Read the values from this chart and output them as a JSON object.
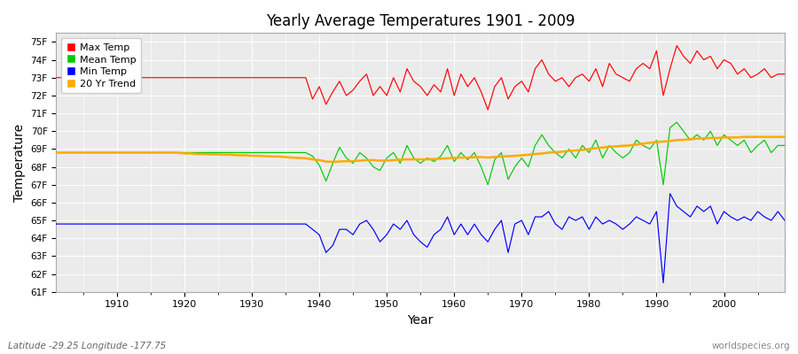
{
  "title": "Yearly Average Temperatures 1901 - 2009",
  "xlabel": "Year",
  "ylabel": "Temperature",
  "lat_lon_text": "Latitude -29.25 Longitude -177.75",
  "watermark": "worldspecies.org",
  "ylim": [
    61,
    75.5
  ],
  "xlim": [
    1901,
    2009
  ],
  "yticks": [
    61,
    62,
    63,
    64,
    65,
    66,
    67,
    68,
    69,
    70,
    71,
    72,
    73,
    74,
    75
  ],
  "ytick_labels": [
    "61F",
    "62F",
    "63F",
    "64F",
    "65F",
    "66F",
    "67F",
    "68F",
    "69F",
    "70F",
    "71F",
    "72F",
    "73F",
    "74F",
    "75F"
  ],
  "xticks": [
    1910,
    1920,
    1930,
    1940,
    1950,
    1960,
    1970,
    1980,
    1990,
    2000
  ],
  "fig_background": "#ffffff",
  "plot_background": "#ebebeb",
  "grid_color": "#ffffff",
  "legend_entries": [
    "Max Temp",
    "Mean Temp",
    "Min Temp",
    "20 Yr Trend"
  ],
  "line_colors": {
    "max": "#ff0000",
    "mean": "#00cc00",
    "min": "#0000ff",
    "trend": "#ffaa00"
  },
  "max_data": [
    1901,
    73.0,
    1902,
    73.0,
    1903,
    73.0,
    1904,
    73.0,
    1905,
    73.0,
    1906,
    73.0,
    1907,
    73.0,
    1908,
    73.0,
    1909,
    73.0,
    1910,
    73.0,
    1911,
    73.0,
    1912,
    73.0,
    1913,
    73.0,
    1914,
    73.0,
    1915,
    73.0,
    1916,
    73.0,
    1917,
    73.0,
    1918,
    73.0,
    1919,
    73.0,
    1920,
    73.0,
    1921,
    73.0,
    1922,
    73.0,
    1923,
    73.0,
    1924,
    73.0,
    1925,
    73.0,
    1926,
    73.0,
    1927,
    73.0,
    1928,
    73.0,
    1929,
    73.0,
    1930,
    73.0,
    1931,
    73.0,
    1932,
    73.0,
    1933,
    73.0,
    1934,
    73.0,
    1935,
    73.0,
    1936,
    73.0,
    1937,
    73.0,
    1938,
    73.0,
    1939,
    71.8,
    1940,
    72.5,
    1941,
    71.5,
    1942,
    72.2,
    1943,
    72.8,
    1944,
    72.0,
    1945,
    72.3,
    1946,
    72.8,
    1947,
    73.2,
    1948,
    72.0,
    1949,
    72.5,
    1950,
    72.0,
    1951,
    73.0,
    1952,
    72.2,
    1953,
    73.5,
    1954,
    72.8,
    1955,
    72.5,
    1956,
    72.0,
    1957,
    72.6,
    1958,
    72.2,
    1959,
    73.5,
    1960,
    72.0,
    1961,
    73.2,
    1962,
    72.5,
    1963,
    73.0,
    1964,
    72.2,
    1965,
    71.2,
    1966,
    72.5,
    1967,
    73.0,
    1968,
    71.8,
    1969,
    72.5,
    1970,
    72.8,
    1971,
    72.2,
    1972,
    73.5,
    1973,
    74.0,
    1974,
    73.2,
    1975,
    72.8,
    1976,
    73.0,
    1977,
    72.5,
    1978,
    73.0,
    1979,
    73.2,
    1980,
    72.8,
    1981,
    73.5,
    1982,
    72.5,
    1983,
    73.8,
    1984,
    73.2,
    1985,
    73.0,
    1986,
    72.8,
    1987,
    73.5,
    1988,
    73.8,
    1989,
    73.5,
    1990,
    74.5,
    1991,
    72.0,
    1992,
    73.5,
    1993,
    74.8,
    1994,
    74.2,
    1995,
    73.8,
    1996,
    74.5,
    1997,
    74.0,
    1998,
    74.2,
    1999,
    73.5,
    2000,
    74.0,
    2001,
    73.8,
    2002,
    73.2,
    2003,
    73.5,
    2004,
    73.0,
    2005,
    73.2,
    2006,
    73.5,
    2007,
    73.0,
    2008,
    73.2,
    2009,
    73.2
  ],
  "mean_data": [
    1901,
    68.8,
    1902,
    68.8,
    1903,
    68.8,
    1904,
    68.8,
    1905,
    68.8,
    1906,
    68.8,
    1907,
    68.8,
    1908,
    68.8,
    1909,
    68.8,
    1910,
    68.8,
    1911,
    68.8,
    1912,
    68.8,
    1913,
    68.8,
    1914,
    68.8,
    1915,
    68.8,
    1916,
    68.8,
    1917,
    68.8,
    1918,
    68.8,
    1919,
    68.8,
    1920,
    68.8,
    1921,
    68.8,
    1922,
    68.8,
    1923,
    68.8,
    1924,
    68.8,
    1925,
    68.8,
    1926,
    68.8,
    1927,
    68.8,
    1928,
    68.8,
    1929,
    68.8,
    1930,
    68.8,
    1931,
    68.8,
    1932,
    68.8,
    1933,
    68.8,
    1934,
    68.8,
    1935,
    68.8,
    1936,
    68.8,
    1937,
    68.8,
    1938,
    68.8,
    1939,
    68.6,
    1940,
    68.1,
    1941,
    67.2,
    1942,
    68.2,
    1943,
    69.1,
    1944,
    68.5,
    1945,
    68.2,
    1946,
    68.8,
    1947,
    68.5,
    1948,
    68.0,
    1949,
    67.8,
    1950,
    68.5,
    1951,
    68.8,
    1952,
    68.2,
    1953,
    69.2,
    1954,
    68.5,
    1955,
    68.2,
    1956,
    68.5,
    1957,
    68.3,
    1958,
    68.6,
    1959,
    69.2,
    1960,
    68.3,
    1961,
    68.8,
    1962,
    68.4,
    1963,
    68.8,
    1964,
    68.0,
    1965,
    67.0,
    1966,
    68.4,
    1967,
    68.8,
    1968,
    67.3,
    1969,
    68.0,
    1970,
    68.5,
    1971,
    68.0,
    1972,
    69.2,
    1973,
    69.8,
    1974,
    69.2,
    1975,
    68.8,
    1976,
    68.5,
    1977,
    69.0,
    1978,
    68.5,
    1979,
    69.2,
    1980,
    68.8,
    1981,
    69.5,
    1982,
    68.5,
    1983,
    69.2,
    1984,
    68.8,
    1985,
    68.5,
    1986,
    68.8,
    1987,
    69.5,
    1988,
    69.2,
    1989,
    69.0,
    1990,
    69.5,
    1991,
    67.0,
    1992,
    70.2,
    1993,
    70.5,
    1994,
    70.0,
    1995,
    69.5,
    1996,
    69.8,
    1997,
    69.5,
    1998,
    70.0,
    1999,
    69.2,
    2000,
    69.8,
    2001,
    69.5,
    2002,
    69.2,
    2003,
    69.5,
    2004,
    68.8,
    2005,
    69.2,
    2006,
    69.5,
    2007,
    68.8,
    2008,
    69.2,
    2009,
    69.2
  ],
  "min_data": [
    1901,
    64.8,
    1902,
    64.8,
    1903,
    64.8,
    1904,
    64.8,
    1905,
    64.8,
    1906,
    64.8,
    1907,
    64.8,
    1908,
    64.8,
    1909,
    64.8,
    1910,
    64.8,
    1911,
    64.8,
    1912,
    64.8,
    1913,
    64.8,
    1914,
    64.8,
    1915,
    64.8,
    1916,
    64.8,
    1917,
    64.8,
    1918,
    64.8,
    1919,
    64.8,
    1920,
    64.8,
    1921,
    64.8,
    1922,
    64.8,
    1923,
    64.8,
    1924,
    64.8,
    1925,
    64.8,
    1926,
    64.8,
    1927,
    64.8,
    1928,
    64.8,
    1929,
    64.8,
    1930,
    64.8,
    1931,
    64.8,
    1932,
    64.8,
    1933,
    64.8,
    1934,
    64.8,
    1935,
    64.8,
    1936,
    64.8,
    1937,
    64.8,
    1938,
    64.8,
    1939,
    64.5,
    1940,
    64.2,
    1941,
    63.2,
    1942,
    63.6,
    1943,
    64.5,
    1944,
    64.5,
    1945,
    64.2,
    1946,
    64.8,
    1947,
    65.0,
    1948,
    64.5,
    1949,
    63.8,
    1950,
    64.2,
    1951,
    64.8,
    1952,
    64.5,
    1953,
    65.0,
    1954,
    64.2,
    1955,
    63.8,
    1956,
    63.5,
    1957,
    64.2,
    1958,
    64.5,
    1959,
    65.2,
    1960,
    64.2,
    1961,
    64.8,
    1962,
    64.2,
    1963,
    64.8,
    1964,
    64.2,
    1965,
    63.8,
    1966,
    64.5,
    1967,
    65.0,
    1968,
    63.2,
    1969,
    64.8,
    1970,
    65.0,
    1971,
    64.2,
    1972,
    65.2,
    1973,
    65.2,
    1974,
    65.5,
    1975,
    64.8,
    1976,
    64.5,
    1977,
    65.2,
    1978,
    65.0,
    1979,
    65.2,
    1980,
    64.5,
    1981,
    65.2,
    1982,
    64.8,
    1983,
    65.0,
    1984,
    64.8,
    1985,
    64.5,
    1986,
    64.8,
    1987,
    65.2,
    1988,
    65.0,
    1989,
    64.8,
    1990,
    65.5,
    1991,
    61.5,
    1992,
    66.5,
    1993,
    65.8,
    1994,
    65.5,
    1995,
    65.2,
    1996,
    65.8,
    1997,
    65.5,
    1998,
    65.8,
    1999,
    64.8,
    2000,
    65.5,
    2001,
    65.2,
    2002,
    65.0,
    2003,
    65.2,
    2004,
    65.0,
    2005,
    65.5,
    2006,
    65.2,
    2007,
    65.0,
    2008,
    65.5,
    2009,
    65.0
  ],
  "trend_data": [
    1901,
    68.8,
    1902,
    68.8,
    1903,
    68.8,
    1904,
    68.8,
    1905,
    68.8,
    1906,
    68.8,
    1907,
    68.8,
    1908,
    68.8,
    1909,
    68.8,
    1910,
    68.8,
    1911,
    68.8,
    1912,
    68.8,
    1913,
    68.8,
    1914,
    68.8,
    1915,
    68.8,
    1916,
    68.8,
    1917,
    68.8,
    1918,
    68.8,
    1919,
    68.8,
    1920,
    68.75,
    1921,
    68.75,
    1922,
    68.72,
    1923,
    68.72,
    1924,
    68.7,
    1925,
    68.7,
    1926,
    68.68,
    1927,
    68.68,
    1928,
    68.65,
    1929,
    68.65,
    1930,
    68.62,
    1931,
    68.62,
    1932,
    68.6,
    1933,
    68.58,
    1934,
    68.58,
    1935,
    68.55,
    1936,
    68.52,
    1937,
    68.5,
    1938,
    68.48,
    1939,
    68.42,
    1940,
    68.38,
    1941,
    68.3,
    1942,
    68.28,
    1943,
    68.3,
    1944,
    68.32,
    1945,
    68.32,
    1946,
    68.35,
    1947,
    68.38,
    1948,
    68.38,
    1949,
    68.35,
    1950,
    68.35,
    1951,
    68.38,
    1952,
    68.4,
    1953,
    68.42,
    1954,
    68.42,
    1955,
    68.42,
    1956,
    68.42,
    1957,
    68.44,
    1958,
    68.46,
    1959,
    68.48,
    1960,
    68.5,
    1961,
    68.52,
    1962,
    68.52,
    1963,
    68.55,
    1964,
    68.55,
    1965,
    68.52,
    1966,
    68.55,
    1967,
    68.58,
    1968,
    68.6,
    1969,
    68.62,
    1970,
    68.65,
    1971,
    68.68,
    1972,
    68.72,
    1973,
    68.75,
    1974,
    68.8,
    1975,
    68.82,
    1976,
    68.85,
    1977,
    68.9,
    1978,
    68.92,
    1979,
    68.95,
    1980,
    69.0,
    1981,
    69.05,
    1982,
    69.08,
    1983,
    69.12,
    1984,
    69.15,
    1985,
    69.18,
    1986,
    69.2,
    1987,
    69.25,
    1988,
    69.3,
    1989,
    69.35,
    1990,
    69.4,
    1991,
    69.42,
    1992,
    69.45,
    1993,
    69.5,
    1994,
    69.52,
    1995,
    69.55,
    1996,
    69.58,
    1997,
    69.6,
    1998,
    69.62,
    1999,
    69.62,
    2000,
    69.65,
    2001,
    69.65,
    2002,
    69.65,
    2003,
    69.68,
    2004,
    69.68,
    2005,
    69.68,
    2006,
    69.68,
    2007,
    69.68,
    2008,
    69.68,
    2009,
    69.68
  ]
}
